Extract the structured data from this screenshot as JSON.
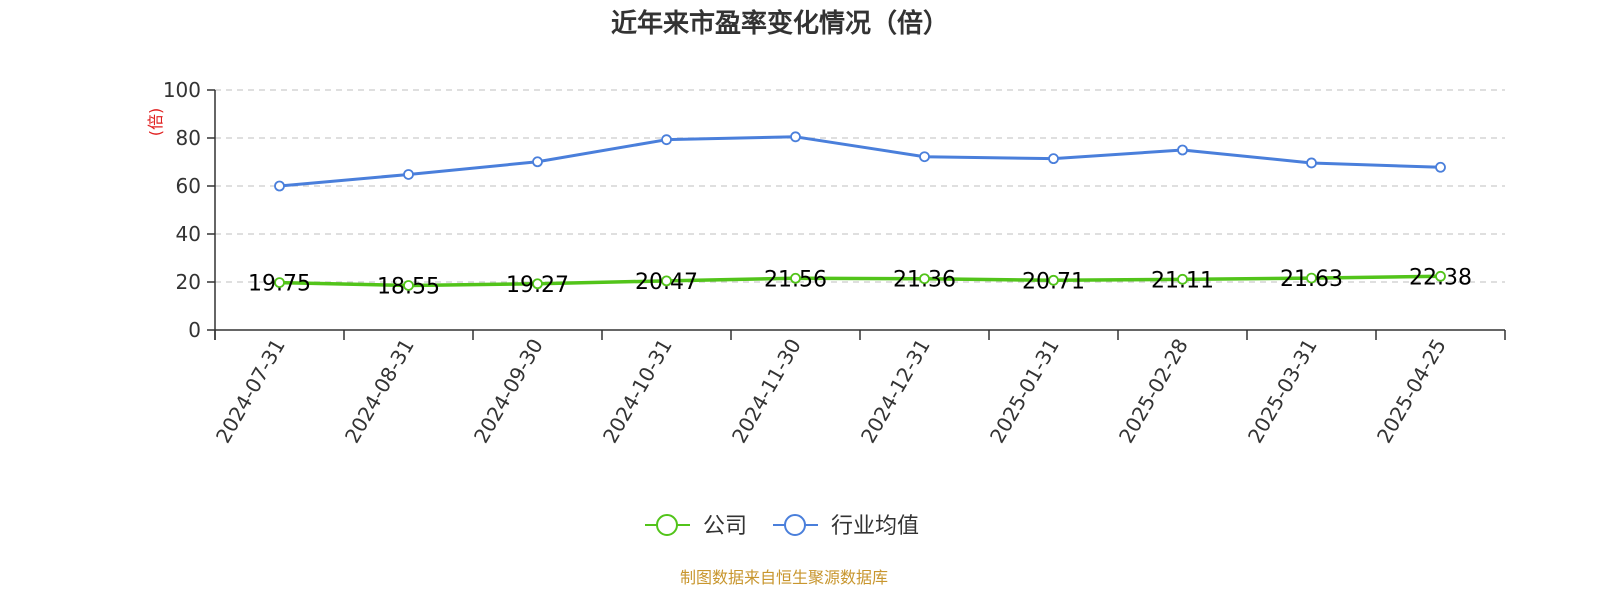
{
  "chart_data": {
    "type": "line",
    "title": "近年来市盈率变化情况（倍）",
    "ylabel": "(倍)",
    "xlabel": "",
    "categories": [
      "2024-07-31",
      "2024-08-31",
      "2024-09-30",
      "2024-10-31",
      "2024-11-30",
      "2024-12-31",
      "2025-01-31",
      "2025-02-28",
      "2025-03-31",
      "2025-04-25"
    ],
    "series": [
      {
        "name": "公司",
        "values": [
          19.75,
          18.55,
          19.27,
          20.47,
          21.56,
          21.36,
          20.71,
          21.11,
          21.63,
          22.38
        ],
        "value_labels": [
          "19.75",
          "18.55",
          "19.27",
          "20.47",
          "21.56",
          "21.36",
          "20.71",
          "21.11",
          "21.63",
          "22.38"
        ]
      },
      {
        "name": "行业均值",
        "values": [
          60.0,
          64.8,
          70.1,
          79.3,
          80.5,
          72.2,
          71.4,
          75.0,
          69.6,
          67.8
        ]
      }
    ],
    "ylim": [
      0,
      100
    ],
    "yticks": [
      0,
      20,
      40,
      60,
      80,
      100
    ],
    "yticks_labels": [
      "0",
      "20",
      "40",
      "60",
      "80",
      "100"
    ],
    "grid": true,
    "legend_position": "bottom-center",
    "colors": {
      "company": "#52c41a",
      "industry": "#4a7fdb",
      "ylabel": "#e02020",
      "axis": "#333333",
      "grid": "#cccccc",
      "title": "#333333",
      "source": "#c8962e"
    }
  },
  "source_text": "制图数据来自恒生聚源数据库"
}
